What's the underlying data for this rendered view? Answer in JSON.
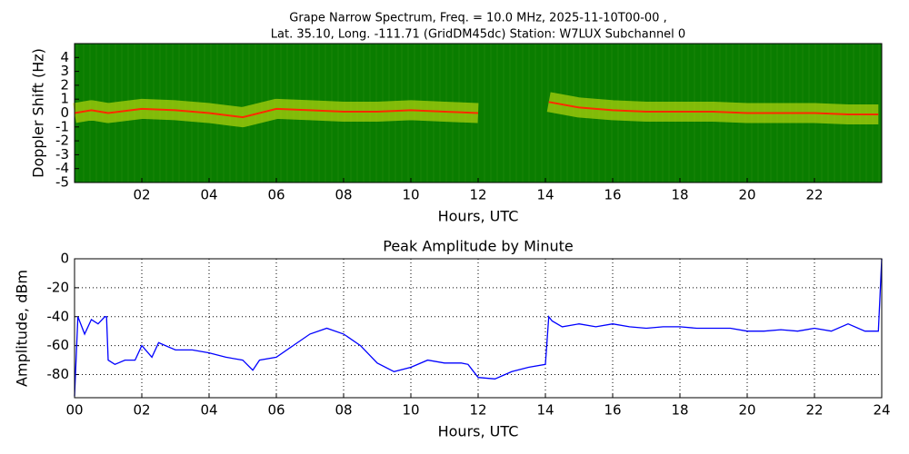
{
  "chart_data": [
    {
      "type": "spectrogram",
      "title": [
        "Grape Narrow Spectrum, Freq. = 10.0 MHz, 2025-11-10T00-00 ,",
        "Lat.  35.10, Long. -111.71 (GridDM45dc) Station: W7LUX Subchannel 0"
      ],
      "xlabel": "Hours, UTC",
      "ylabel": "Doppler Shift (Hz)",
      "x": [
        0,
        0.5,
        1,
        2,
        3,
        4,
        5,
        6,
        7,
        8,
        9,
        10,
        11,
        12,
        13,
        14.1,
        15,
        16,
        17,
        18,
        19,
        20,
        21,
        22,
        23,
        23.9
      ],
      "values": [
        0,
        0.2,
        0,
        0.3,
        0.2,
        0,
        -0.3,
        0.3,
        0.2,
        0.1,
        0.1,
        0.2,
        0.1,
        0,
        null,
        0.8,
        0.4,
        0.2,
        0.1,
        0.1,
        0.1,
        0,
        0,
        0,
        -0.1,
        -0.1
      ],
      "color": "#ff2a00",
      "background": "#0a7d00",
      "xlim": [
        0,
        24
      ],
      "ylim": [
        -5,
        5
      ],
      "xticks": [
        {
          "value": 2,
          "label": "02"
        },
        {
          "value": 4,
          "label": "04"
        },
        {
          "value": 6,
          "label": "06"
        },
        {
          "value": 8,
          "label": "08"
        },
        {
          "value": 10,
          "label": "10"
        },
        {
          "value": 12,
          "label": "12"
        },
        {
          "value": 14,
          "label": "14"
        },
        {
          "value": 16,
          "label": "16"
        },
        {
          "value": 18,
          "label": "18"
        },
        {
          "value": 20,
          "label": "20"
        },
        {
          "value": 22,
          "label": "22"
        }
      ],
      "yticks": [
        -5,
        -4,
        -3,
        -2,
        -1,
        0,
        1,
        2,
        3,
        4
      ],
      "grid": false
    },
    {
      "type": "line",
      "title": "Peak Amplitude by Minute",
      "xlabel": "Hours, UTC",
      "ylabel": "Amplitude, dBm",
      "x": [
        0,
        0.1,
        0.3,
        0.5,
        0.7,
        0.9,
        0.95,
        1.0,
        1.2,
        1.5,
        1.8,
        2.0,
        2.3,
        2.5,
        3.0,
        3.5,
        4.0,
        4.5,
        5.0,
        5.3,
        5.5,
        6.0,
        6.5,
        7.0,
        7.5,
        8.0,
        8.5,
        9.0,
        9.5,
        10.0,
        10.5,
        11.0,
        11.5,
        11.7,
        12.0,
        12.5,
        13.0,
        13.5,
        14.0,
        14.1,
        14.2,
        14.5,
        15.0,
        15.5,
        16.0,
        16.5,
        17.0,
        17.5,
        18.0,
        18.5,
        19.0,
        19.5,
        20.0,
        20.5,
        21.0,
        21.5,
        22.0,
        22.5,
        23.0,
        23.5,
        23.9,
        24.0
      ],
      "values": [
        -95,
        -40,
        -52,
        -42,
        -45,
        -40,
        -40,
        -70,
        -73,
        -70,
        -70,
        -60,
        -68,
        -58,
        -63,
        -63,
        -65,
        -68,
        -70,
        -77,
        -70,
        -68,
        -60,
        -52,
        -48,
        -52,
        -60,
        -72,
        -78,
        -75,
        -70,
        -72,
        -72,
        -73,
        -82,
        -83,
        -78,
        -75,
        -73,
        -40,
        -43,
        -47,
        -45,
        -47,
        -45,
        -47,
        -48,
        -47,
        -47,
        -48,
        -48,
        -48,
        -50,
        -50,
        -49,
        -50,
        -48,
        -50,
        -45,
        -50,
        -50,
        0
      ],
      "color": "#0000ff",
      "xlim": [
        0,
        24
      ],
      "ylim": [
        -96,
        0
      ],
      "xticks": [
        {
          "value": 0,
          "label": "00"
        },
        {
          "value": 2,
          "label": "02"
        },
        {
          "value": 4,
          "label": "04"
        },
        {
          "value": 6,
          "label": "06"
        },
        {
          "value": 8,
          "label": "08"
        },
        {
          "value": 10,
          "label": "10"
        },
        {
          "value": 12,
          "label": "12"
        },
        {
          "value": 14,
          "label": "14"
        },
        {
          "value": 16,
          "label": "16"
        },
        {
          "value": 18,
          "label": "18"
        },
        {
          "value": 20,
          "label": "20"
        },
        {
          "value": 22,
          "label": "22"
        },
        {
          "value": 24,
          "label": "24"
        }
      ],
      "yticks": [
        -80,
        -60,
        -40,
        -20,
        0
      ],
      "grid": true
    }
  ]
}
